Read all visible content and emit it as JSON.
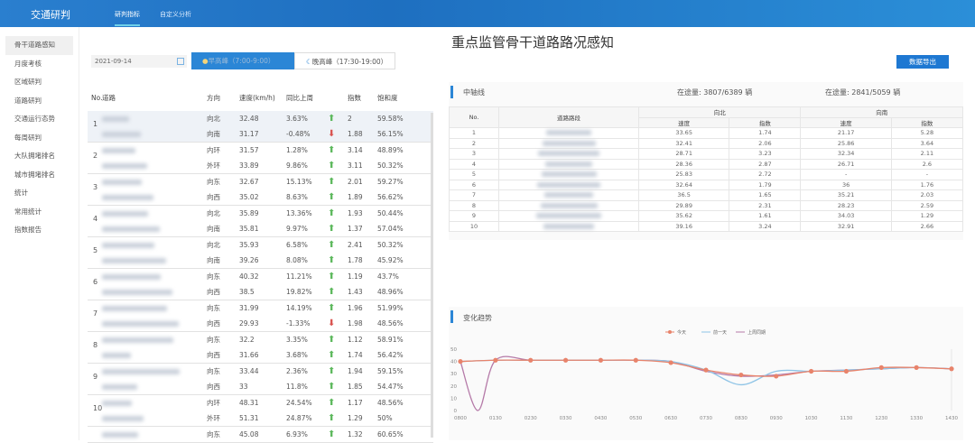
{
  "top": {
    "brand": "交通研判",
    "tabs": [
      "研判指标",
      "自定义分析"
    ],
    "active": 0
  },
  "sidebar": [
    "骨干道路感知",
    "月度考核",
    "区域研判",
    "道路研判",
    "交通运行态势",
    "每周研判",
    "大队拥堵排名",
    "城市拥堵排名",
    "统计",
    "常用统计",
    "指数报告"
  ],
  "title": "重点监管骨干道路路况感知",
  "controls": {
    "date": "2021-09-14",
    "morning": "早高峰（7:00-9:00）",
    "evening": "晚高峰（17:30-19:00）",
    "export": "数据导出"
  },
  "left_table": {
    "headers": [
      "No.",
      "道路",
      "方向",
      "速度(km/h)",
      "同比上周",
      "",
      "指数",
      "饱和度"
    ],
    "groups": [
      {
        "no": "1",
        "rows": [
          [
            "向北",
            "32.48",
            "3.63%",
            "up",
            "2",
            "59.58%"
          ],
          [
            "向南",
            "31.17",
            "-0.48%",
            "down",
            "1.88",
            "56.15%"
          ]
        ]
      },
      {
        "no": "2",
        "rows": [
          [
            "内环",
            "31.57",
            "1.28%",
            "up",
            "3.14",
            "48.89%"
          ],
          [
            "外环",
            "33.89",
            "9.86%",
            "up",
            "3.11",
            "50.32%"
          ]
        ]
      },
      {
        "no": "3",
        "rows": [
          [
            "向东",
            "32.67",
            "15.13%",
            "up",
            "2.01",
            "59.27%"
          ],
          [
            "向西",
            "35.02",
            "8.63%",
            "up",
            "1.89",
            "56.62%"
          ]
        ]
      },
      {
        "no": "4",
        "rows": [
          [
            "向北",
            "35.89",
            "13.36%",
            "up",
            "1.93",
            "50.44%"
          ],
          [
            "向南",
            "35.81",
            "9.97%",
            "up",
            "1.37",
            "57.04%"
          ]
        ]
      },
      {
        "no": "5",
        "rows": [
          [
            "向北",
            "35.93",
            "6.58%",
            "up",
            "2.41",
            "50.32%"
          ],
          [
            "向南",
            "39.26",
            "8.08%",
            "up",
            "1.78",
            "45.92%"
          ]
        ]
      },
      {
        "no": "6",
        "rows": [
          [
            "向东",
            "40.32",
            "11.21%",
            "up",
            "1.19",
            "43.7%"
          ],
          [
            "向西",
            "38.5",
            "19.82%",
            "up",
            "1.43",
            "48.96%"
          ]
        ]
      },
      {
        "no": "7",
        "rows": [
          [
            "向东",
            "31.99",
            "14.19%",
            "up",
            "1.96",
            "51.99%"
          ],
          [
            "向西",
            "29.93",
            "-1.33%",
            "down",
            "1.98",
            "48.56%"
          ]
        ]
      },
      {
        "no": "8",
        "rows": [
          [
            "向东",
            "32.2",
            "3.35%",
            "up",
            "1.12",
            "58.91%"
          ],
          [
            "向西",
            "31.66",
            "3.68%",
            "up",
            "1.74",
            "56.42%"
          ]
        ]
      },
      {
        "no": "9",
        "rows": [
          [
            "向东",
            "33.44",
            "2.36%",
            "up",
            "1.94",
            "59.15%"
          ],
          [
            "向西",
            "33",
            "11.8%",
            "up",
            "1.85",
            "54.47%"
          ]
        ]
      },
      {
        "no": "10",
        "rows": [
          [
            "内环",
            "48.31",
            "24.54%",
            "up",
            "1.17",
            "48.56%"
          ],
          [
            "外环",
            "51.31",
            "24.87%",
            "up",
            "1.29",
            "50%"
          ]
        ]
      },
      {
        "no": "",
        "rows": [
          [
            "向东",
            "45.08",
            "6.93%",
            "up",
            "1.32",
            "60.65%"
          ]
        ]
      }
    ]
  },
  "right_panel": {
    "title": "中轴线",
    "north_count": "在途量:  3807/6389 辆",
    "south_count": "在途量:  2841/5059 辆",
    "headers": {
      "no": "No.",
      "segment": "道路路段",
      "north": "向北",
      "south": "向南",
      "speed": "速度",
      "index": "指数"
    },
    "rows": [
      [
        "1",
        "33.65",
        "1.74",
        "21.17",
        "5.28"
      ],
      [
        "2",
        "32.41",
        "2.06",
        "25.86",
        "3.64"
      ],
      [
        "3",
        "28.71",
        "3.23",
        "32.34",
        "2.11"
      ],
      [
        "4",
        "28.36",
        "2.87",
        "26.71",
        "2.6"
      ],
      [
        "5",
        "25.83",
        "2.72",
        "-",
        "-"
      ],
      [
        "6",
        "32.64",
        "1.79",
        "36",
        "1.76"
      ],
      [
        "7",
        "36.5",
        "1.65",
        "35.21",
        "2.03"
      ],
      [
        "8",
        "29.89",
        "2.31",
        "28.23",
        "2.59"
      ],
      [
        "9",
        "35.62",
        "1.61",
        "34.03",
        "1.29"
      ],
      [
        "10",
        "39.16",
        "3.24",
        "32.91",
        "2.66"
      ]
    ]
  },
  "chart_data": {
    "type": "line",
    "title": "变化趋势",
    "categories": [
      "0800",
      "0130",
      "0230",
      "0330",
      "0430",
      "0530",
      "0630",
      "0730",
      "0830",
      "0930",
      "1030",
      "1130",
      "1230",
      "1330",
      "1430"
    ],
    "ylim": [
      0,
      50
    ],
    "yticks": [
      0,
      10,
      20,
      30,
      40,
      50
    ],
    "series": [
      {
        "name": "今天",
        "color": "#e8836b",
        "values": [
          40,
          41,
          41,
          41,
          41,
          41,
          39,
          33,
          29,
          28,
          32,
          32,
          35,
          35,
          34
        ]
      },
      {
        "name": "前一天",
        "color": "#8fc4e6",
        "values": [
          40,
          41,
          41,
          41,
          41,
          41,
          40,
          33,
          21,
          32,
          32,
          33,
          34,
          35,
          34
        ]
      },
      {
        "name": "上周同期",
        "color": "#b57aa8",
        "values": [
          40,
          41,
          41,
          41,
          41,
          41,
          40,
          32,
          28,
          29,
          32,
          33,
          34,
          35,
          34
        ]
      }
    ],
    "dip": {
      "series": "上周同期",
      "value": 0
    }
  }
}
